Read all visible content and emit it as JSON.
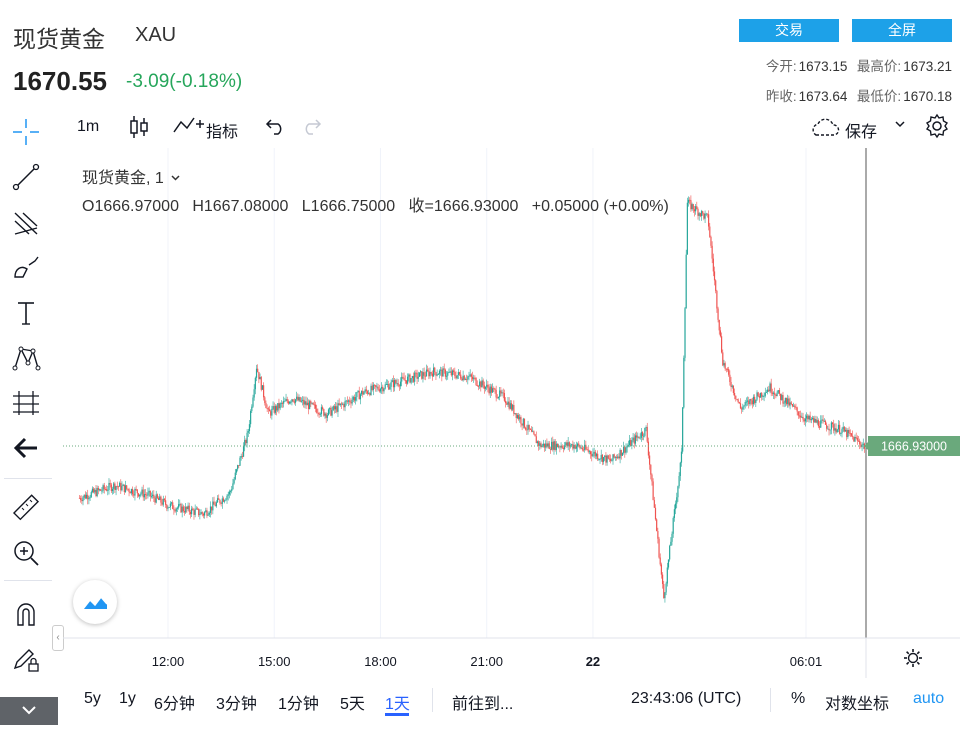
{
  "header": {
    "title": "现货黄金",
    "symbol": "XAU",
    "price": "1670.55",
    "change": "-3.09(-0.18%)",
    "btn_trade": "交易",
    "btn_fullscreen": "全屏",
    "stats": {
      "open_label": "今开:",
      "open": "1673.15",
      "high_label": "最高价:",
      "high": "1673.21",
      "prev_close_label": "昨收:",
      "prev_close": "1673.64",
      "low_label": "最低价:",
      "low": "1670.18"
    }
  },
  "toolbar": {
    "interval": "1m",
    "indicators": "指标",
    "save": "保存"
  },
  "legend": {
    "name": "现货黄金, 1",
    "open": "O1666.97000",
    "high": "H1667.08000",
    "low": "L1666.75000",
    "close": "收=1666.93000",
    "change": "+0.05000 (+0.00%)"
  },
  "price_label": "1666.93000",
  "colors": {
    "up": "#26a69a",
    "down": "#ef5350",
    "accent": "#1da1e8",
    "price_tag": "#6aa97c",
    "change_text": "#26a65b"
  },
  "chart_data": {
    "type": "candlestick",
    "x_ticks": [
      "12:00",
      "15:00",
      "18:00",
      "21:00",
      "22",
      "06:01"
    ],
    "last_price": 1666.93,
    "approx_close_path": [
      [
        "09:30",
        1662.0
      ],
      [
        "10:30",
        1663.2
      ],
      [
        "11:30",
        1662.2
      ],
      [
        "12:00",
        1661.3
      ],
      [
        "13:00",
        1660.5
      ],
      [
        "13:45",
        1662.5
      ],
      [
        "14:15",
        1668.0
      ],
      [
        "14:30",
        1674.5
      ],
      [
        "14:50",
        1670.0
      ],
      [
        "15:30",
        1671.5
      ],
      [
        "16:30",
        1670.0
      ],
      [
        "17:30",
        1672.0
      ],
      [
        "18:30",
        1673.0
      ],
      [
        "19:30",
        1674.0
      ],
      [
        "20:30",
        1673.5
      ],
      [
        "21:30",
        1671.5
      ],
      [
        "22:30",
        1667.0
      ],
      [
        "23:30",
        1667.0
      ],
      [
        "00:30",
        1665.5
      ],
      [
        "01:30",
        1668.5
      ],
      [
        "02:00",
        1652.5
      ],
      [
        "02:30",
        1666.0
      ],
      [
        "02:40",
        1690.0
      ],
      [
        "03:15",
        1688.5
      ],
      [
        "03:40",
        1675.0
      ],
      [
        "04:10",
        1670.5
      ],
      [
        "05:00",
        1672.5
      ],
      [
        "06:00",
        1669.5
      ],
      [
        "07:00",
        1668.5
      ],
      [
        "07:40",
        1666.93
      ]
    ]
  },
  "bottom": {
    "ranges": [
      "5y",
      "1y",
      "6分钟",
      "3分钟",
      "1分钟",
      "5天",
      "1天"
    ],
    "goto": "前往到...",
    "time": "23:43:06 (UTC)",
    "percent": "%",
    "log": "对数坐标",
    "auto": "auto"
  }
}
